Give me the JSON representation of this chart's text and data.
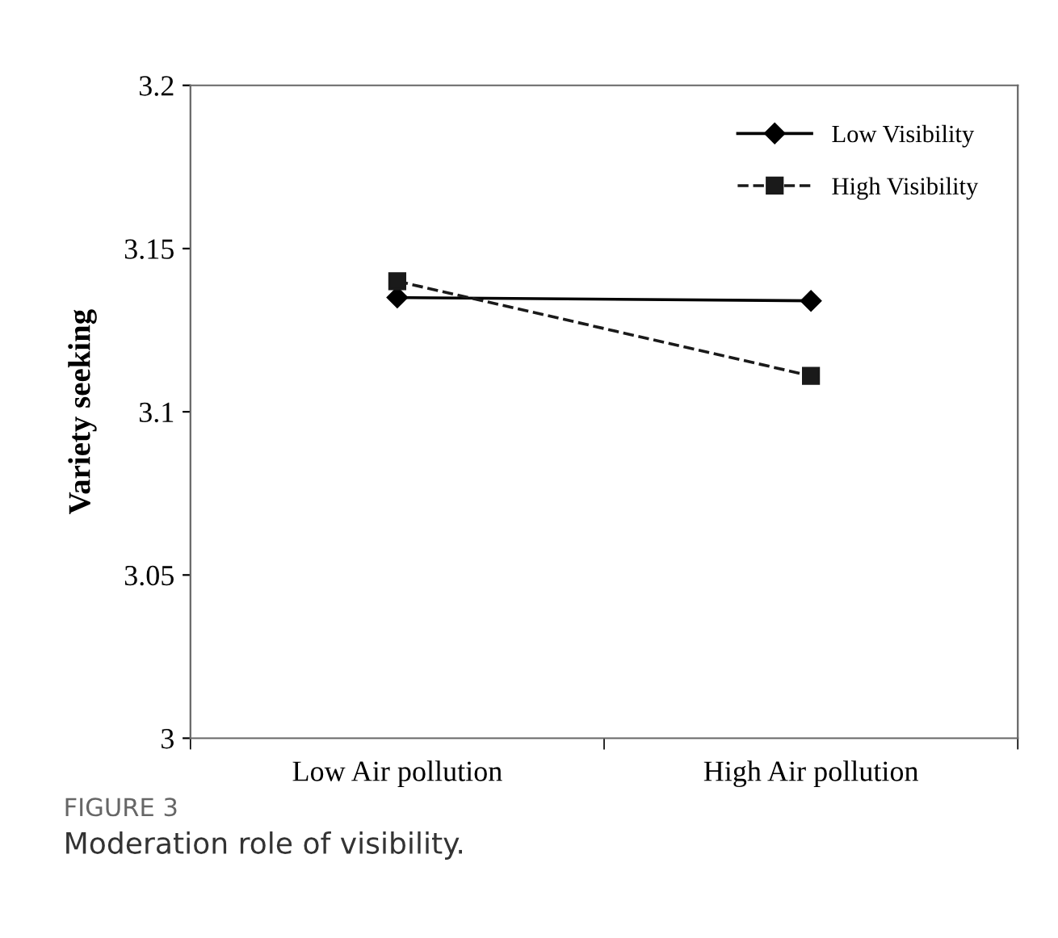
{
  "chart_data": {
    "type": "line",
    "ylabel": "Variety seeking",
    "categories": [
      "Low Air pollution",
      "High Air pollution"
    ],
    "series": [
      {
        "name": "Low Visibility",
        "color": "#000000",
        "values": [
          3.135,
          3.134
        ],
        "marker": "diamond",
        "line_style": "solid"
      },
      {
        "name": "High Visibility",
        "color": "#1a1a1a",
        "values": [
          3.14,
          3.111
        ],
        "marker": "square",
        "line_style": "dashed"
      }
    ],
    "ylim": [
      3,
      3.2
    ],
    "yticks": [
      3,
      3.05,
      3.1,
      3.15,
      3.2
    ],
    "grid": false,
    "legend": "top right",
    "annotations": [
      "FIGURE 3",
      "Moderation role of visibility."
    ]
  }
}
